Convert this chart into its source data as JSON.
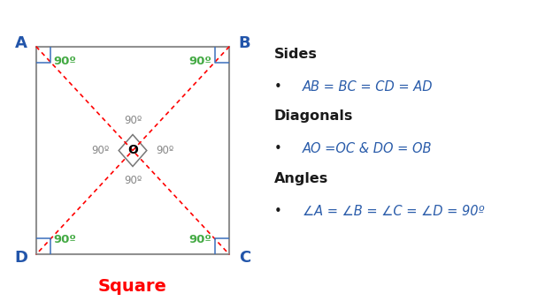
{
  "fig_width": 6.25,
  "fig_height": 3.41,
  "dpi": 100,
  "square_color": "#909090",
  "diagonal_color": "#ff0000",
  "corner_color": "#3a6fbc",
  "angle_color": "#44aa44",
  "label_color": "#2255aa",
  "title_color": "#ff0000",
  "center_label": "O",
  "corner_angle": "90º",
  "center_angle": "90º",
  "title": "Square",
  "sides_header": "Sides",
  "sides_bullet": "AB = BC = CD = AD",
  "diagonals_header": "Diagonals",
  "diagonals_bullet": "AO =OC & DO = OB",
  "angles_header": "Angles",
  "angles_bullet": "∠A = ∠B = ∠C = ∠D = 90º",
  "text_black": "#1a1a1a",
  "text_blue": "#2a5caa"
}
